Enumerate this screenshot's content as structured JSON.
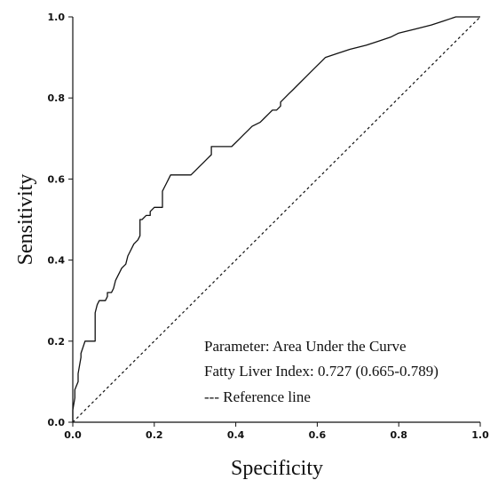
{
  "chart_data": {
    "type": "line",
    "xlabel": "Specificity",
    "ylabel": "Sensitivity",
    "xlim": [
      0.0,
      1.0
    ],
    "ylim": [
      0.0,
      1.0
    ],
    "x_ticks": [
      "0.0",
      "0.2",
      "0.4",
      "0.6",
      "0.8",
      "1.0"
    ],
    "y_ticks": [
      "0.0",
      "0.2",
      "0.4",
      "0.6",
      "0.8",
      "1.0"
    ],
    "grid": false,
    "annotations": [
      "Parameter: Area Under the Curve",
      "Fatty Liver Index: 0.727 (0.665-0.789)",
      "--- Reference line"
    ],
    "series": [
      {
        "style": "solid",
        "color": "#111111",
        "x": [
          0.0,
          0.0,
          0.005,
          0.005,
          0.013,
          0.013,
          0.02,
          0.02,
          0.03,
          0.035,
          0.035,
          0.05,
          0.055,
          0.055,
          0.06,
          0.06,
          0.065,
          0.065,
          0.08,
          0.085,
          0.085,
          0.095,
          0.1,
          0.1,
          0.105,
          0.11,
          0.115,
          0.12,
          0.13,
          0.135,
          0.14,
          0.15,
          0.16,
          0.165,
          0.165,
          0.17,
          0.17,
          0.18,
          0.19,
          0.19,
          0.2,
          0.21,
          0.22,
          0.22,
          0.225,
          0.23,
          0.235,
          0.24,
          0.25,
          0.27,
          0.29,
          0.3,
          0.31,
          0.32,
          0.33,
          0.34,
          0.34,
          0.35,
          0.36,
          0.38,
          0.39,
          0.4,
          0.41,
          0.42,
          0.43,
          0.44,
          0.46,
          0.47,
          0.48,
          0.49,
          0.5,
          0.51,
          0.51,
          0.52,
          0.53,
          0.54,
          0.55,
          0.56,
          0.57,
          0.58,
          0.6,
          0.61,
          0.62,
          0.65,
          0.68,
          0.72,
          0.75,
          0.78,
          0.8,
          0.84,
          0.88,
          0.91,
          0.94,
          0.96,
          0.97,
          1.0
        ],
        "y": [
          0.0,
          0.03,
          0.06,
          0.08,
          0.1,
          0.12,
          0.16,
          0.17,
          0.2,
          0.2,
          0.2,
          0.2,
          0.2,
          0.27,
          0.29,
          0.29,
          0.3,
          0.3,
          0.3,
          0.31,
          0.32,
          0.32,
          0.33,
          0.33,
          0.35,
          0.36,
          0.37,
          0.38,
          0.39,
          0.41,
          0.42,
          0.44,
          0.45,
          0.46,
          0.5,
          0.5,
          0.5,
          0.51,
          0.51,
          0.52,
          0.53,
          0.53,
          0.53,
          0.57,
          0.58,
          0.59,
          0.6,
          0.61,
          0.61,
          0.61,
          0.61,
          0.62,
          0.63,
          0.64,
          0.65,
          0.66,
          0.68,
          0.68,
          0.68,
          0.68,
          0.68,
          0.69,
          0.7,
          0.71,
          0.72,
          0.73,
          0.74,
          0.75,
          0.76,
          0.77,
          0.77,
          0.78,
          0.79,
          0.8,
          0.81,
          0.82,
          0.83,
          0.84,
          0.85,
          0.86,
          0.88,
          0.89,
          0.9,
          0.91,
          0.92,
          0.93,
          0.94,
          0.95,
          0.96,
          0.97,
          0.98,
          0.99,
          1.0,
          1.0,
          1.0,
          1.0
        ]
      },
      {
        "style": "dashed",
        "color": "#111111",
        "x": [
          0.0,
          1.0
        ],
        "y": [
          0.0,
          1.0
        ]
      }
    ]
  }
}
